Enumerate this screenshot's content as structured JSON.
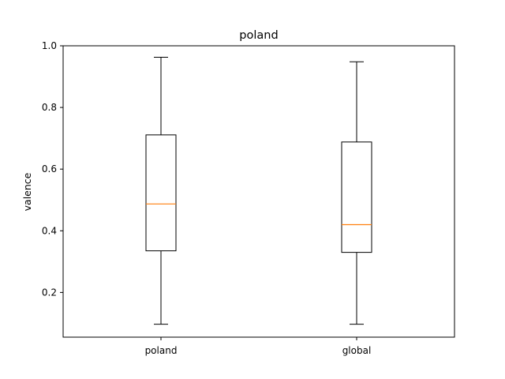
{
  "chart_data": {
    "type": "boxplot",
    "title": "poland",
    "xlabel": "",
    "ylabel": "valence",
    "ylim": [
      0.055,
      1.0
    ],
    "yticks": [
      "0.2",
      "0.4",
      "0.6",
      "0.8",
      "1.0"
    ],
    "categories": [
      "poland",
      "global"
    ],
    "boxes": [
      {
        "label": "poland",
        "whisker_low": 0.097,
        "q1": 0.335,
        "median": 0.487,
        "q3": 0.711,
        "whisker_high": 0.963
      },
      {
        "label": "global",
        "whisker_low": 0.097,
        "q1": 0.33,
        "median": 0.42,
        "q3": 0.688,
        "whisker_high": 0.948
      }
    ],
    "grid": false,
    "colors": {
      "box": "#000000",
      "median": "#ff7f0e"
    }
  }
}
